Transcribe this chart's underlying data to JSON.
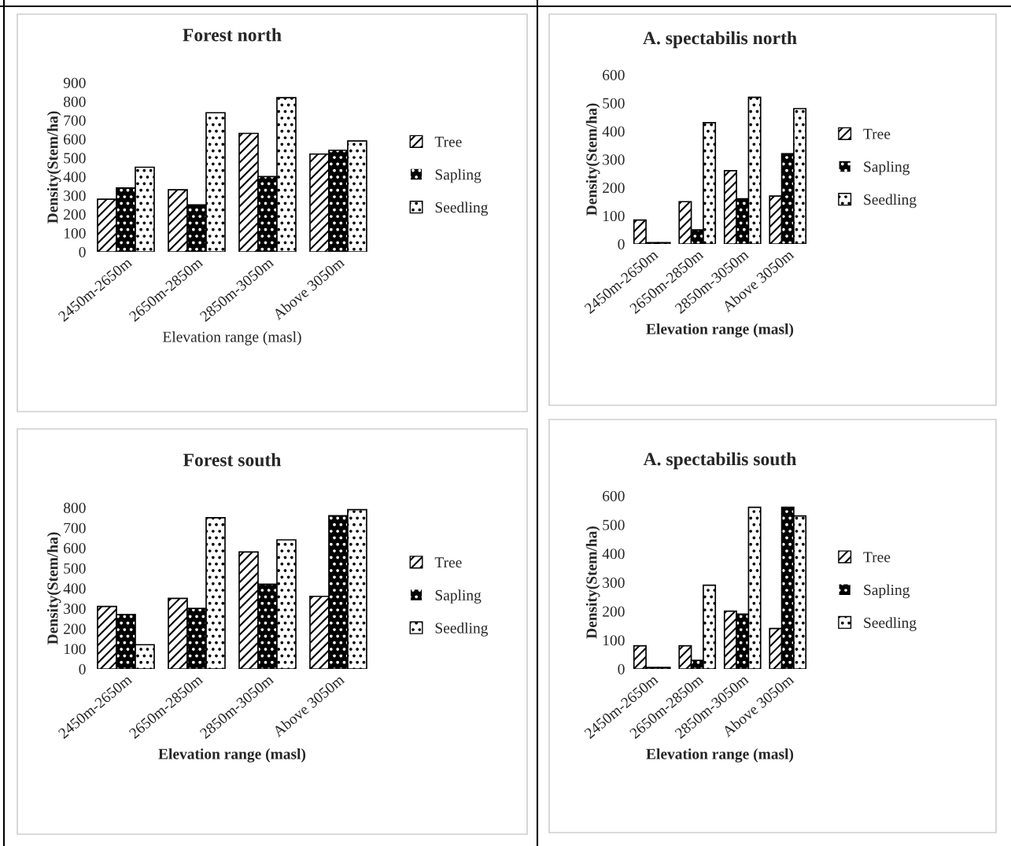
{
  "chart_data": [
    {
      "type": "bar",
      "title": "Forest north",
      "xlabel": "Elevation range (masl)",
      "ylabel": "Density(Stem/ha)",
      "categories": [
        "2450m-2650m",
        "2650m-2850m",
        "2850m-3050m",
        "Above 3050m"
      ],
      "ylim": [
        0,
        900
      ],
      "yticks": [
        0,
        100,
        200,
        300,
        400,
        500,
        600,
        700,
        800,
        900
      ],
      "legend": "right",
      "grid": false,
      "series": [
        {
          "name": "Tree",
          "color": "#ffffff",
          "values": [
            280,
            330,
            630,
            520
          ]
        },
        {
          "name": "Sapling",
          "color": "#000000",
          "values": [
            340,
            250,
            400,
            540
          ]
        },
        {
          "name": "Seedling",
          "color": "#ffffff",
          "values": [
            450,
            740,
            820,
            590
          ]
        }
      ]
    },
    {
      "type": "bar",
      "title": "A. spectabilis north",
      "xlabel": "Elevation range (masl)",
      "ylabel": "Density(Stem/ha)",
      "categories": [
        "2450m-2650m",
        "2650m-2850m",
        "2850m-3050m",
        "Above 3050m"
      ],
      "ylim": [
        0,
        600
      ],
      "yticks": [
        0,
        100,
        200,
        300,
        400,
        500,
        600
      ],
      "legend": "right",
      "grid": false,
      "series": [
        {
          "name": "Tree",
          "color": "#ffffff",
          "values": [
            85,
            150,
            260,
            170
          ]
        },
        {
          "name": "Sapling",
          "color": "#000000",
          "values": [
            5,
            50,
            160,
            320
          ]
        },
        {
          "name": "Seedling",
          "color": "#ffffff",
          "values": [
            5,
            430,
            520,
            480
          ]
        }
      ]
    },
    {
      "type": "bar",
      "title": "Forest south",
      "xlabel": "Elevation range (masl)",
      "ylabel": "Density(Stem/ha)",
      "categories": [
        "2450m-2650m",
        "2650m-2850m",
        "2850m-3050m",
        "Above 3050m"
      ],
      "ylim": [
        0,
        800
      ],
      "yticks": [
        0,
        100,
        200,
        300,
        400,
        500,
        600,
        700,
        800
      ],
      "legend": "right",
      "grid": false,
      "series": [
        {
          "name": "Tree",
          "color": "#ffffff",
          "values": [
            310,
            350,
            580,
            360
          ]
        },
        {
          "name": "Sapling",
          "color": "#000000",
          "values": [
            270,
            300,
            420,
            760
          ]
        },
        {
          "name": "Seedling",
          "color": "#ffffff",
          "values": [
            120,
            750,
            640,
            790
          ]
        }
      ]
    },
    {
      "type": "bar",
      "title": "A. spectabilis south",
      "xlabel": "Elevation range (masl)",
      "ylabel": "Density(Stem/ha)",
      "categories": [
        "2450m-2650m",
        "2650m-2850m",
        "2850m-3050m",
        "Above 3050m"
      ],
      "ylim": [
        0,
        600
      ],
      "yticks": [
        0,
        100,
        200,
        300,
        400,
        500,
        600
      ],
      "legend": "right",
      "grid": false,
      "series": [
        {
          "name": "Tree",
          "color": "#ffffff",
          "values": [
            80,
            80,
            200,
            140
          ]
        },
        {
          "name": "Sapling",
          "color": "#000000",
          "values": [
            5,
            30,
            190,
            560
          ]
        },
        {
          "name": "Seedling",
          "color": "#ffffff",
          "values": [
            5,
            290,
            560,
            530
          ]
        }
      ]
    }
  ]
}
